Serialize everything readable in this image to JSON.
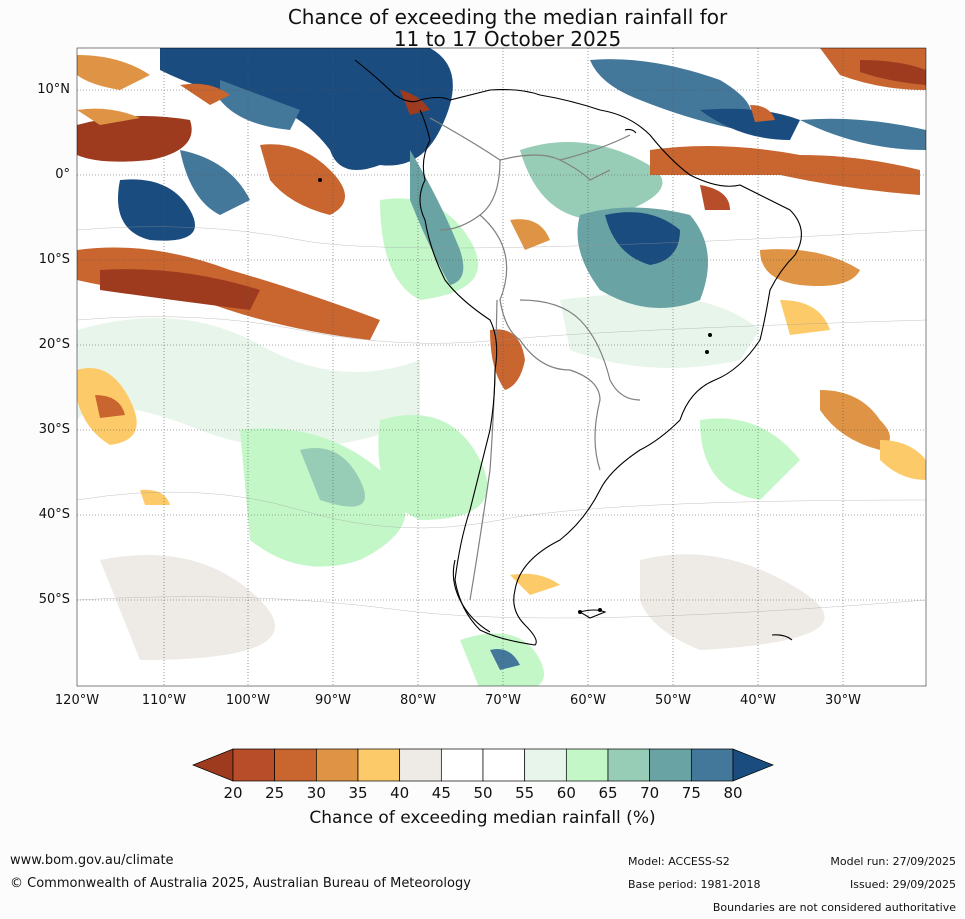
{
  "title": {
    "line1": "Chance of exceeding the median rainfall for",
    "line2": "11 to 17 October 2025"
  },
  "map": {
    "region": "South America",
    "lat_labels": [
      "10°N",
      "0°",
      "10°S",
      "20°S",
      "30°S",
      "40°S",
      "50°S"
    ],
    "lon_labels": [
      "120°W",
      "110°W",
      "100°W",
      "90°W",
      "80°W",
      "70°W",
      "60°W",
      "50°W",
      "40°W",
      "30°W"
    ],
    "colors": {
      "ocean_bg": "#ffffff",
      "coast": "#000000",
      "borders": "#808080",
      "grid": "#555555"
    }
  },
  "colorbar": {
    "ticks": [
      "20",
      "25",
      "30",
      "35",
      "40",
      "45",
      "50",
      "55",
      "60",
      "65",
      "70",
      "75",
      "80"
    ],
    "colors": [
      "#9e3b1f",
      "#b84d2a",
      "#c9652f",
      "#df9445",
      "#fdca6a",
      "#eeebe6",
      "#ffffff",
      "#ffffff",
      "#e8f5ea",
      "#c4f7c8",
      "#97cdb6",
      "#6aa3a4",
      "#43789a",
      "#1a4c80"
    ],
    "label": "Chance of exceeding median rainfall (%)"
  },
  "footer": {
    "website": "www.bom.gov.au/climate",
    "copyright": "© Commonwealth of Australia 2025, Australian Bureau of Meteorology",
    "model": "Model: ACCESS-S2",
    "base_period": "Base period: 1981-2018",
    "model_run": "Model run: 27/09/2025",
    "issued": "Issued: 29/09/2025",
    "disclaimer": "Boundaries are not considered authoritative"
  }
}
